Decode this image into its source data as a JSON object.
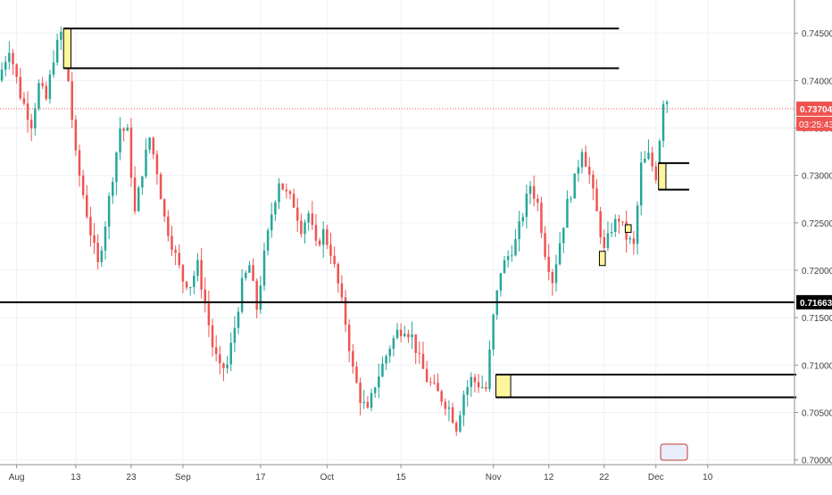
{
  "colors": {
    "up": "#26a69a",
    "down": "#ef5350",
    "grid": "#eef1f5",
    "axis_line": "#8a8f98",
    "axis_text": "#3c4043",
    "line": "#000000",
    "zone_fill": "#fff59d",
    "current_price": "#ef5350",
    "countdown_bg": "#ef5350",
    "label_text": "#ffffff"
  },
  "header": {
    "countdown": "03:25:43"
  },
  "chart_data": {
    "type": "candlestick",
    "grid": true,
    "ylim": [
      0.6995,
      0.7485
    ],
    "y_ticks": [
      "0.74500",
      "0.74000",
      "0.73500",
      "0.73000",
      "0.72500",
      "0.72000",
      "0.71500",
      "0.71000",
      "0.70500",
      "0.70000"
    ],
    "x_ticks": [
      {
        "label": "Aug",
        "index": 4
      },
      {
        "label": "13",
        "index": 20
      },
      {
        "label": "23",
        "index": 35
      },
      {
        "label": "Sep",
        "index": 49
      },
      {
        "label": "17",
        "index": 70
      },
      {
        "label": "Oct",
        "index": 88
      },
      {
        "label": "15",
        "index": 108
      },
      {
        "label": "Nov",
        "index": 133
      },
      {
        "label": "12",
        "index": 148
      },
      {
        "label": "22",
        "index": 163
      },
      {
        "label": "Dec",
        "index": 177
      },
      {
        "label": "10",
        "index": 191
      }
    ],
    "x_axis_extent": 215,
    "price_path": [
      [
        0,
        0.74
      ],
      [
        3,
        0.7435
      ],
      [
        6,
        0.7385
      ],
      [
        9,
        0.7355
      ],
      [
        11,
        0.7395
      ],
      [
        13,
        0.738
      ],
      [
        15,
        0.7425
      ],
      [
        17,
        0.745
      ],
      [
        19,
        0.74
      ],
      [
        21,
        0.732
      ],
      [
        23,
        0.728
      ],
      [
        25,
        0.724
      ],
      [
        27,
        0.7205
      ],
      [
        29,
        0.725
      ],
      [
        31,
        0.73
      ],
      [
        33,
        0.735
      ],
      [
        35,
        0.7345
      ],
      [
        37,
        0.726
      ],
      [
        39,
        0.7305
      ],
      [
        41,
        0.734
      ],
      [
        43,
        0.7305
      ],
      [
        45,
        0.7255
      ],
      [
        48,
        0.7215
      ],
      [
        50,
        0.719
      ],
      [
        52,
        0.7185
      ],
      [
        54,
        0.7205
      ],
      [
        56,
        0.7165
      ],
      [
        58,
        0.712
      ],
      [
        60,
        0.7095
      ],
      [
        62,
        0.71
      ],
      [
        64,
        0.714
      ],
      [
        66,
        0.7185
      ],
      [
        68,
        0.7205
      ],
      [
        70,
        0.716
      ],
      [
        72,
        0.7215
      ],
      [
        74,
        0.726
      ],
      [
        76,
        0.7295
      ],
      [
        78,
        0.728
      ],
      [
        80,
        0.727
      ],
      [
        82,
        0.7245
      ],
      [
        84,
        0.726
      ],
      [
        86,
        0.7225
      ],
      [
        88,
        0.724
      ],
      [
        90,
        0.722
      ],
      [
        92,
        0.7185
      ],
      [
        94,
        0.7145
      ],
      [
        96,
        0.7095
      ],
      [
        98,
        0.7065
      ],
      [
        100,
        0.705
      ],
      [
        102,
        0.708
      ],
      [
        104,
        0.71
      ],
      [
        106,
        0.712
      ],
      [
        108,
        0.7135
      ],
      [
        110,
        0.714
      ],
      [
        112,
        0.713
      ],
      [
        114,
        0.7105
      ],
      [
        116,
        0.7085
      ],
      [
        118,
        0.7075
      ],
      [
        120,
        0.7065
      ],
      [
        122,
        0.7055
      ],
      [
        124,
        0.7035
      ],
      [
        126,
        0.707
      ],
      [
        128,
        0.7085
      ],
      [
        130,
        0.708
      ],
      [
        132,
        0.7075
      ],
      [
        134,
        0.715
      ],
      [
        136,
        0.72
      ],
      [
        138,
        0.7215
      ],
      [
        140,
        0.723
      ],
      [
        142,
        0.726
      ],
      [
        144,
        0.729
      ],
      [
        146,
        0.727
      ],
      [
        148,
        0.722
      ],
      [
        150,
        0.719
      ],
      [
        152,
        0.723
      ],
      [
        154,
        0.727
      ],
      [
        156,
        0.7295
      ],
      [
        158,
        0.733
      ],
      [
        160,
        0.73
      ],
      [
        162,
        0.726
      ],
      [
        164,
        0.722
      ],
      [
        166,
        0.7245
      ],
      [
        168,
        0.7255
      ],
      [
        170,
        0.7235
      ],
      [
        172,
        0.7225
      ],
      [
        174,
        0.731
      ],
      [
        176,
        0.732
      ],
      [
        178,
        0.73
      ],
      [
        180,
        0.738
      ]
    ],
    "current_price": "0.73704",
    "current_price_value": 0.73704,
    "hlines": [
      {
        "price": 0.71663,
        "label": "0.71663",
        "x_start": 0,
        "x_end": 215,
        "width": 2
      }
    ],
    "zones": [
      {
        "x_start": 17,
        "x_end": 167,
        "price_top": 0.7455,
        "price_bottom": 0.7413,
        "marker_end": 19
      },
      {
        "x_start": 134,
        "x_end": 215,
        "price_top": 0.709,
        "price_bottom": 0.7066,
        "marker_end": 138
      },
      {
        "x_start": 178,
        "x_end": 186,
        "price_top": 0.7313,
        "price_bottom": 0.7285,
        "marker_end": 180
      }
    ],
    "boxes": [
      {
        "x_start": 162,
        "x_end": 163,
        "price_top": 0.722,
        "price_bottom": 0.7205
      },
      {
        "x_start": 169,
        "x_end": 170,
        "price_top": 0.7248,
        "price_bottom": 0.724
      }
    ]
  }
}
